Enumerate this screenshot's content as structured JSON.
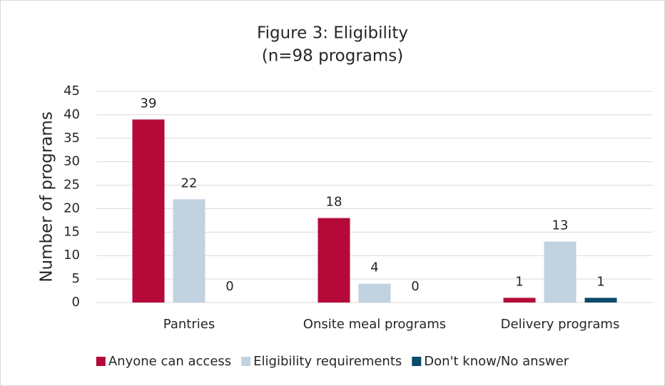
{
  "chart_data": {
    "type": "bar",
    "title": "Figure 3: Eligibility",
    "subtitle": "(n=98 programs)",
    "y_label": "Number of programs",
    "categories": [
      "Pantries",
      "Onsite meal programs",
      "Delivery programs"
    ],
    "series": [
      {
        "name": "Anyone can access",
        "color": "#b5093a",
        "values": [
          39,
          18,
          1
        ]
      },
      {
        "name": "Eligibility requirements",
        "color": "#c1d2e1",
        "values": [
          22,
          4,
          13
        ]
      },
      {
        "name": "Don't know/No answer",
        "color": "#0d4a6b",
        "values": [
          0,
          0,
          1
        ]
      }
    ],
    "ylim": [
      0,
      45
    ],
    "yticks": [
      0,
      5,
      10,
      15,
      20,
      25,
      30,
      35,
      40,
      45
    ],
    "grid": true,
    "legend": "bottom"
  }
}
